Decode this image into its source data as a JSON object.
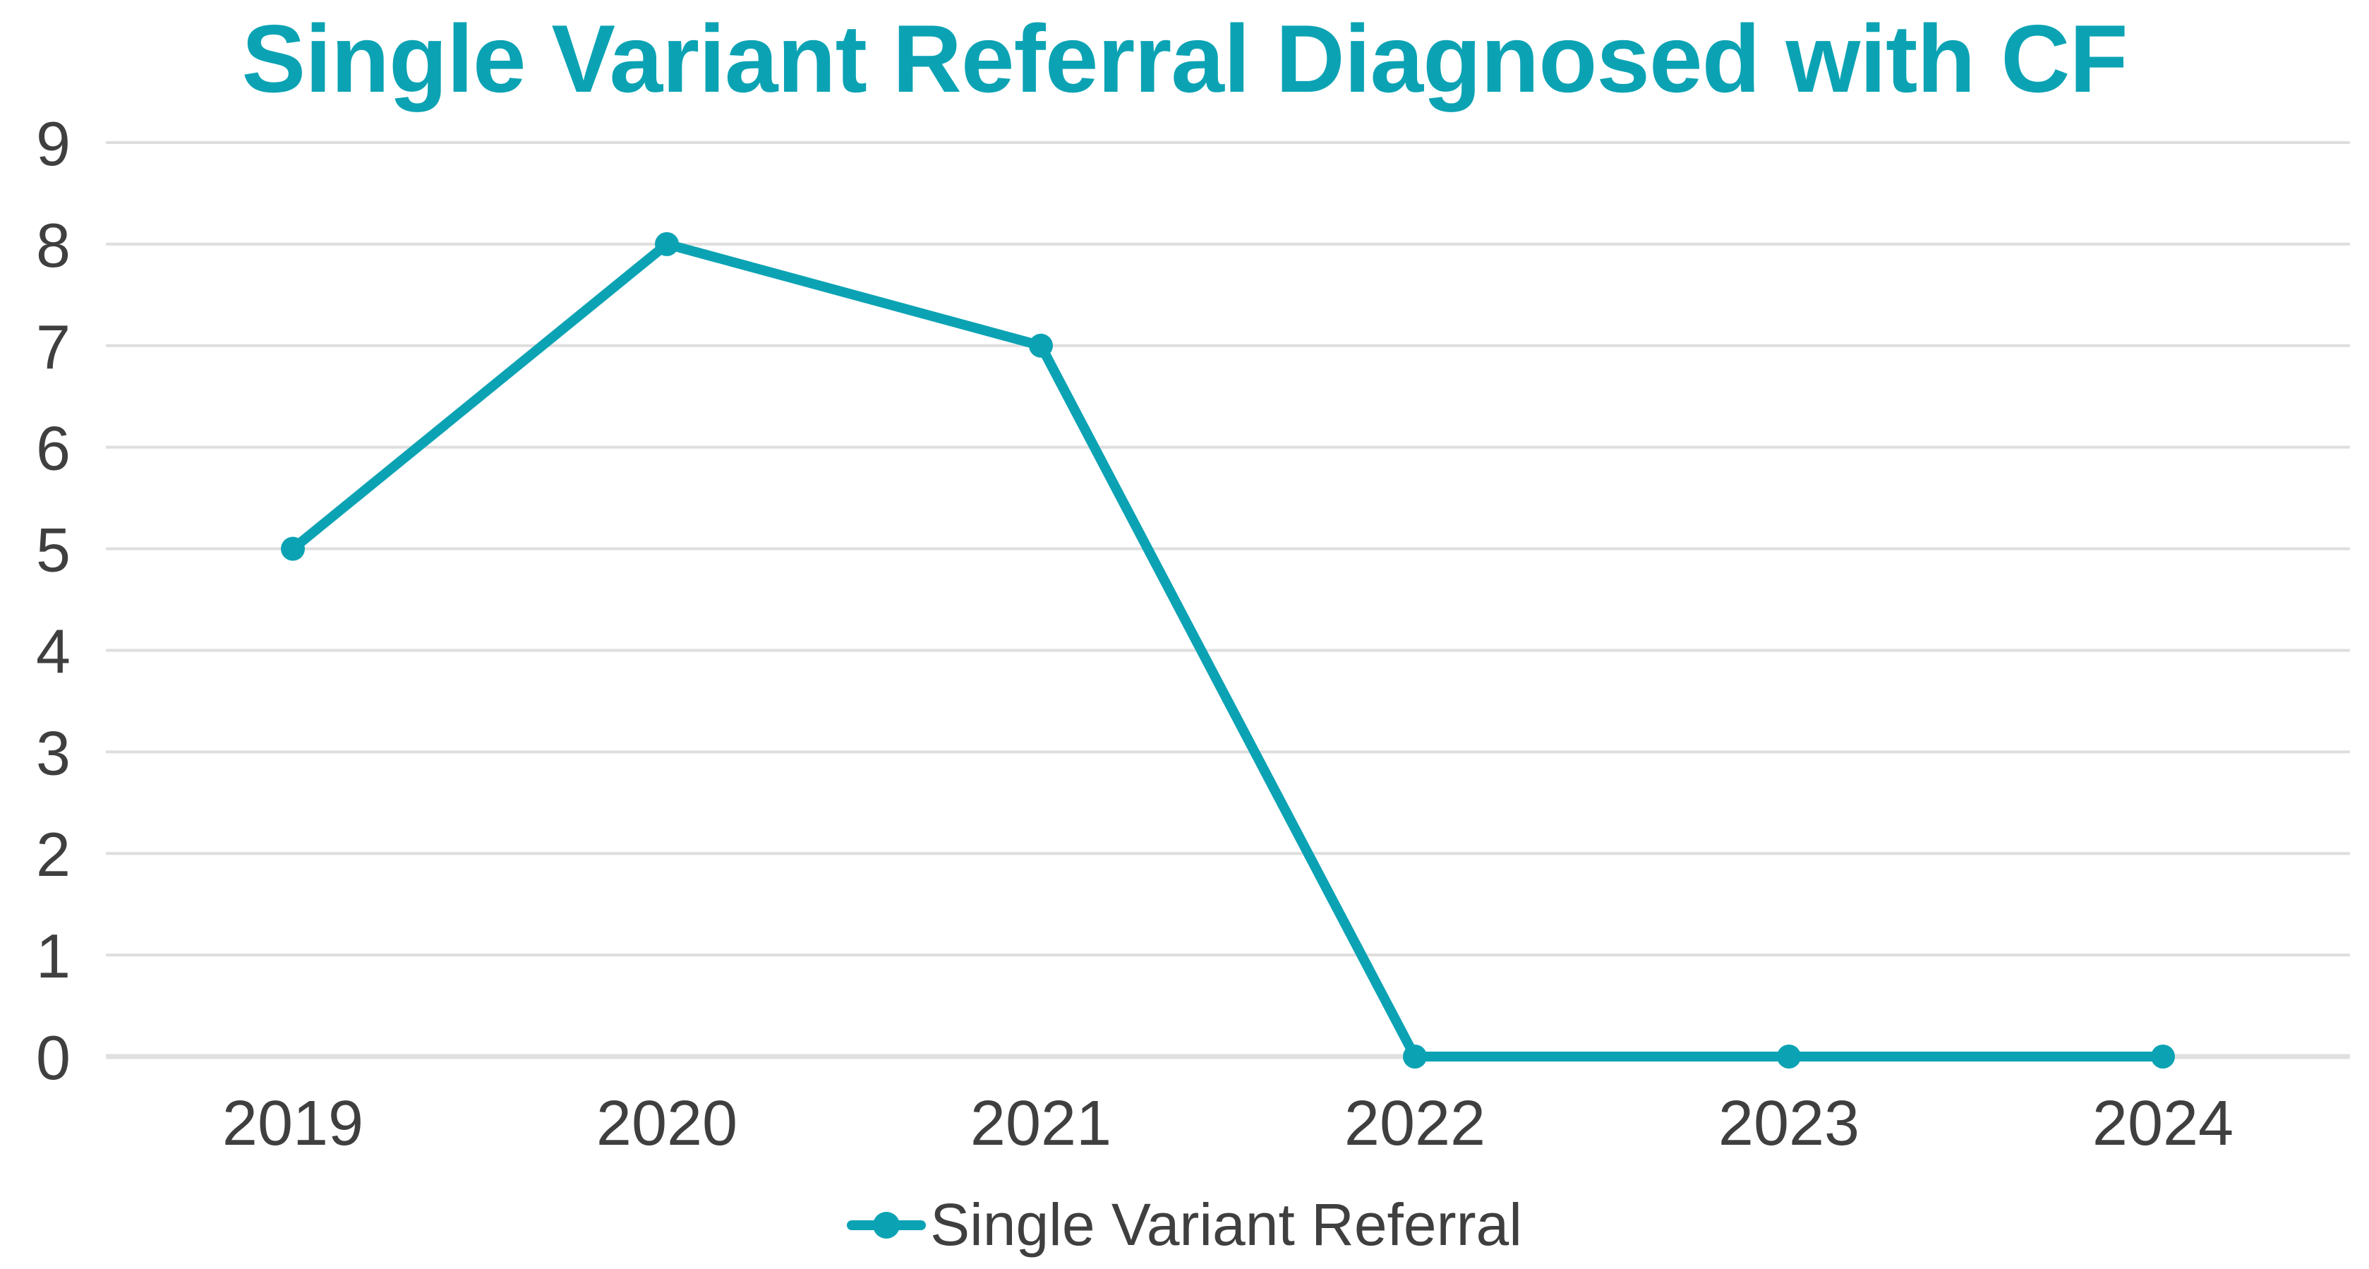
{
  "title": "Single Variant Referral Diagnosed with CF",
  "colors": {
    "accent_teal": "#0ba3b4",
    "axis_text": "#3f3f3f",
    "gridline": "#dedede",
    "zero_axis_line": "#e0e0e0",
    "background": "#ffffff"
  },
  "legend": {
    "position": "bottom-center",
    "items": [
      {
        "label": "Single Variant Referral",
        "marker": "line-with-dot-icon",
        "color": "#0ba3b4"
      }
    ]
  },
  "chart_data": {
    "type": "line",
    "title": "Single Variant Referral Diagnosed with CF",
    "categories": [
      "2019",
      "2020",
      "2021",
      "2022",
      "2023",
      "2024"
    ],
    "series": [
      {
        "name": "Single Variant Referral",
        "values": [
          5,
          8,
          7,
          0,
          0,
          0
        ],
        "color": "#0ba3b4",
        "marker": "circle"
      }
    ],
    "xlabel": "",
    "ylabel": "",
    "ylim": [
      0,
      9
    ],
    "yticks": [
      0,
      1,
      2,
      3,
      4,
      5,
      6,
      7,
      8,
      9
    ],
    "grid": "horizontal",
    "legend_position": "bottom"
  }
}
